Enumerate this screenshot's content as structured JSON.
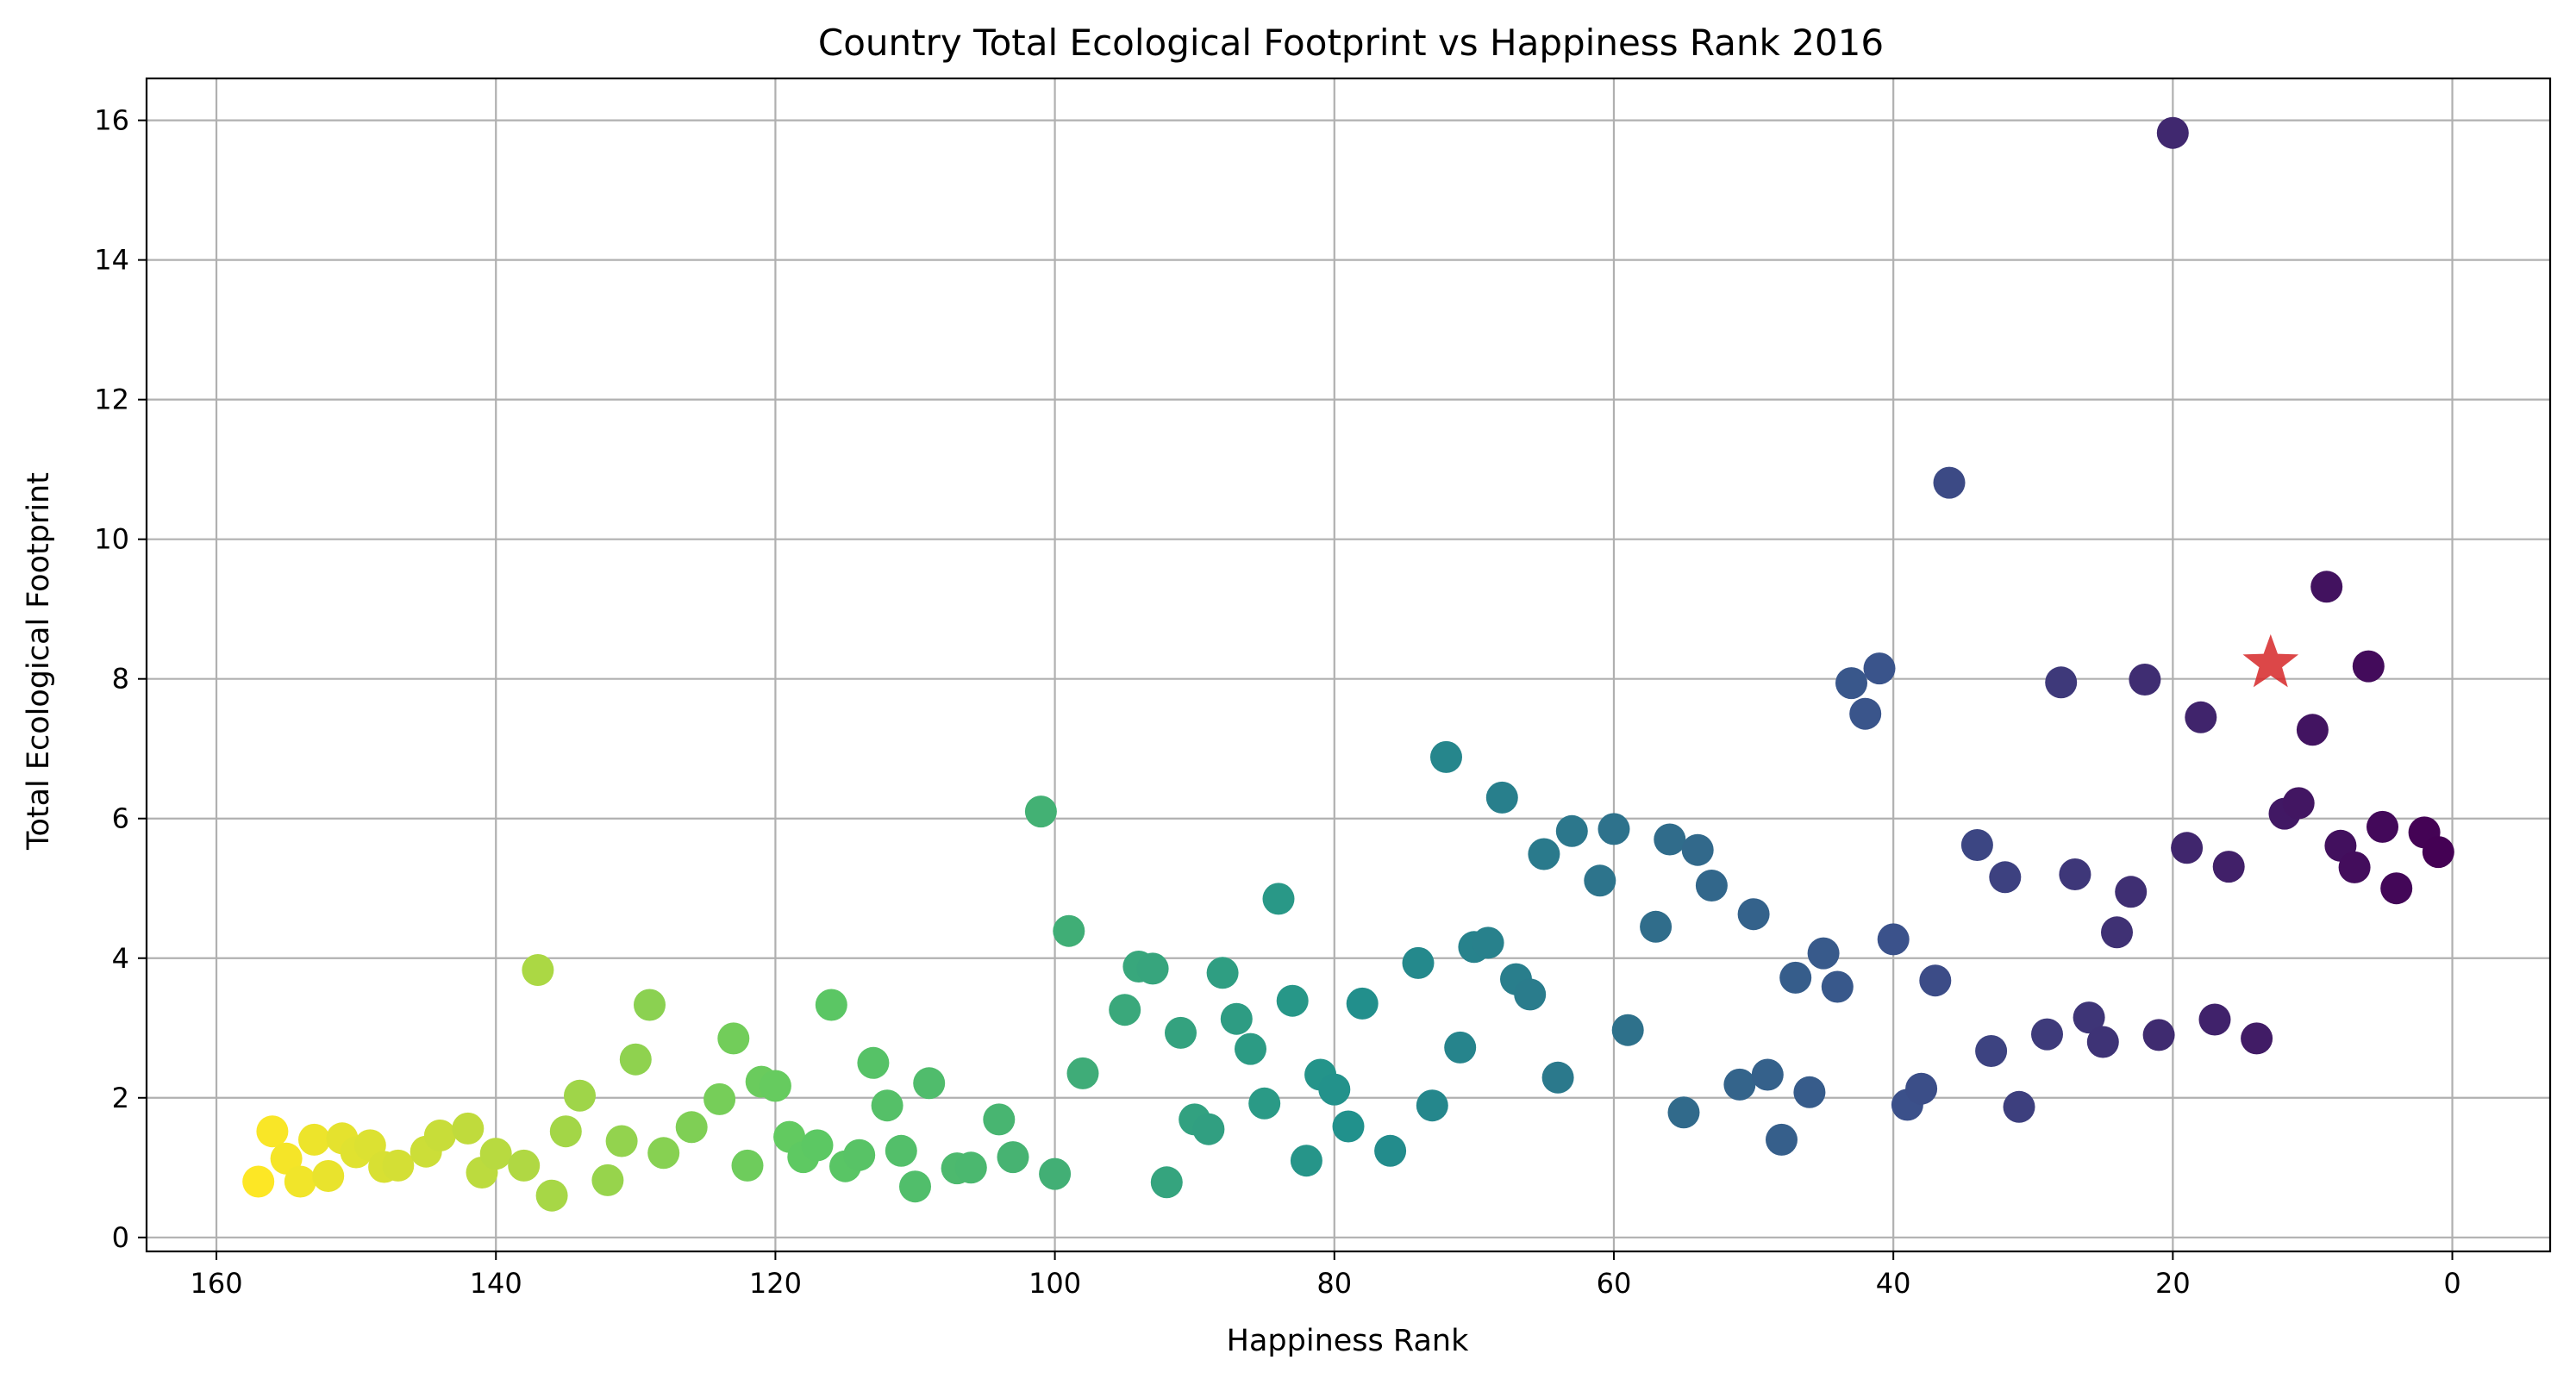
{
  "chart_data": {
    "type": "scatter",
    "title": "Country Total Ecological Footprint vs Happiness Rank 2016",
    "xlabel": "Happiness Rank",
    "ylabel": "Total Ecological Footprint",
    "xlim": [
      165,
      -7
    ],
    "ylim": [
      -0.2,
      16.6
    ],
    "x_inverted": true,
    "grid": true,
    "xticks": [
      160,
      140,
      120,
      100,
      80,
      60,
      40,
      20,
      0
    ],
    "yticks": [
      0,
      2,
      4,
      6,
      8,
      10,
      12,
      14,
      16
    ],
    "colormap": "viridis_r (color mapped to Happiness Rank)",
    "color_range": [
      1,
      157
    ],
    "marker_color_stops": [
      "#440154",
      "#3b528b",
      "#21918c",
      "#5ec962",
      "#fde725"
    ],
    "highlight_color": "#d62728",
    "points": [
      [
        157,
        0.8
      ],
      [
        156,
        1.52
      ],
      [
        155,
        1.13
      ],
      [
        154,
        0.8
      ],
      [
        153,
        1.4
      ],
      [
        152,
        0.88
      ],
      [
        151,
        1.42
      ],
      [
        150,
        1.22
      ],
      [
        149,
        1.32
      ],
      [
        148,
        1.01
      ],
      [
        147,
        1.03
      ],
      [
        145,
        1.23
      ],
      [
        144,
        1.46
      ],
      [
        142,
        1.56
      ],
      [
        141,
        0.93
      ],
      [
        140,
        1.2
      ],
      [
        138,
        1.03
      ],
      [
        137,
        3.83
      ],
      [
        136,
        0.6
      ],
      [
        135,
        1.52
      ],
      [
        134,
        2.03
      ],
      [
        132,
        0.82
      ],
      [
        131,
        1.38
      ],
      [
        130,
        2.55
      ],
      [
        129,
        3.33
      ],
      [
        128,
        1.21
      ],
      [
        126,
        1.58
      ],
      [
        124,
        1.98
      ],
      [
        123,
        2.85
      ],
      [
        122,
        1.03
      ],
      [
        121,
        2.23
      ],
      [
        120,
        2.17
      ],
      [
        119,
        1.44
      ],
      [
        118,
        1.15
      ],
      [
        117,
        1.32
      ],
      [
        116,
        3.33
      ],
      [
        115,
        1.02
      ],
      [
        114,
        1.18
      ],
      [
        113,
        2.5
      ],
      [
        112,
        1.89
      ],
      [
        111,
        1.24
      ],
      [
        110,
        0.73
      ],
      [
        109,
        2.21
      ],
      [
        107,
        0.99
      ],
      [
        106,
        1.0
      ],
      [
        104,
        1.69
      ],
      [
        103,
        1.15
      ],
      [
        101,
        6.1
      ],
      [
        100,
        0.91
      ],
      [
        99,
        4.39
      ],
      [
        98,
        2.35
      ],
      [
        95,
        3.26
      ],
      [
        94,
        3.88
      ],
      [
        93,
        3.85
      ],
      [
        92,
        0.79
      ],
      [
        91,
        2.93
      ],
      [
        90,
        1.69
      ],
      [
        89,
        1.55
      ],
      [
        88,
        3.79
      ],
      [
        87,
        3.13
      ],
      [
        86,
        2.7
      ],
      [
        85,
        1.92
      ],
      [
        84,
        4.85
      ],
      [
        83,
        3.39
      ],
      [
        82,
        1.1
      ],
      [
        81,
        2.33
      ],
      [
        80,
        2.12
      ],
      [
        79,
        1.59
      ],
      [
        78,
        3.35
      ],
      [
        76,
        1.24
      ],
      [
        74,
        3.93
      ],
      [
        73,
        1.89
      ],
      [
        72,
        6.88
      ],
      [
        71,
        2.72
      ],
      [
        70,
        4.16
      ],
      [
        69,
        4.22
      ],
      [
        68,
        6.3
      ],
      [
        67,
        3.7
      ],
      [
        66,
        3.48
      ],
      [
        65,
        5.49
      ],
      [
        64,
        2.29
      ],
      [
        63,
        5.82
      ],
      [
        61,
        5.11
      ],
      [
        60,
        5.85
      ],
      [
        59,
        2.97
      ],
      [
        57,
        4.45
      ],
      [
        56,
        5.7
      ],
      [
        55,
        1.79
      ],
      [
        54,
        5.55
      ],
      [
        53,
        5.04
      ],
      [
        51,
        2.19
      ],
      [
        50,
        4.63
      ],
      [
        49,
        2.33
      ],
      [
        48,
        1.4
      ],
      [
        47,
        3.72
      ],
      [
        46,
        2.08
      ],
      [
        45,
        4.07
      ],
      [
        44,
        3.59
      ],
      [
        43,
        7.94
      ],
      [
        42,
        7.5
      ],
      [
        41,
        8.15
      ],
      [
        40,
        4.27
      ],
      [
        39,
        1.9
      ],
      [
        38,
        2.13
      ],
      [
        37,
        3.68
      ],
      [
        36,
        10.81
      ],
      [
        34,
        5.62
      ],
      [
        33,
        2.67
      ],
      [
        32,
        5.16
      ],
      [
        31,
        1.87
      ],
      [
        29,
        2.91
      ],
      [
        28,
        7.95
      ],
      [
        27,
        5.2
      ],
      [
        26,
        3.15
      ],
      [
        25,
        2.8
      ],
      [
        24,
        4.37
      ],
      [
        23,
        4.95
      ],
      [
        22,
        7.99
      ],
      [
        21,
        2.9
      ],
      [
        20,
        15.82
      ],
      [
        19,
        5.58
      ],
      [
        18,
        7.45
      ],
      [
        17,
        3.12
      ],
      [
        16,
        5.31
      ],
      [
        14,
        2.85
      ],
      [
        12,
        6.07
      ],
      [
        11,
        6.22
      ],
      [
        10,
        7.27
      ],
      [
        9,
        9.32
      ],
      [
        8,
        5.61
      ],
      [
        7,
        5.3
      ],
      [
        6,
        8.18
      ],
      [
        5,
        5.88
      ],
      [
        4,
        5.0
      ],
      [
        2,
        5.8
      ],
      [
        1,
        5.52
      ]
    ],
    "highlight": {
      "marker": "star",
      "x": 13,
      "y": 8.22
    }
  }
}
